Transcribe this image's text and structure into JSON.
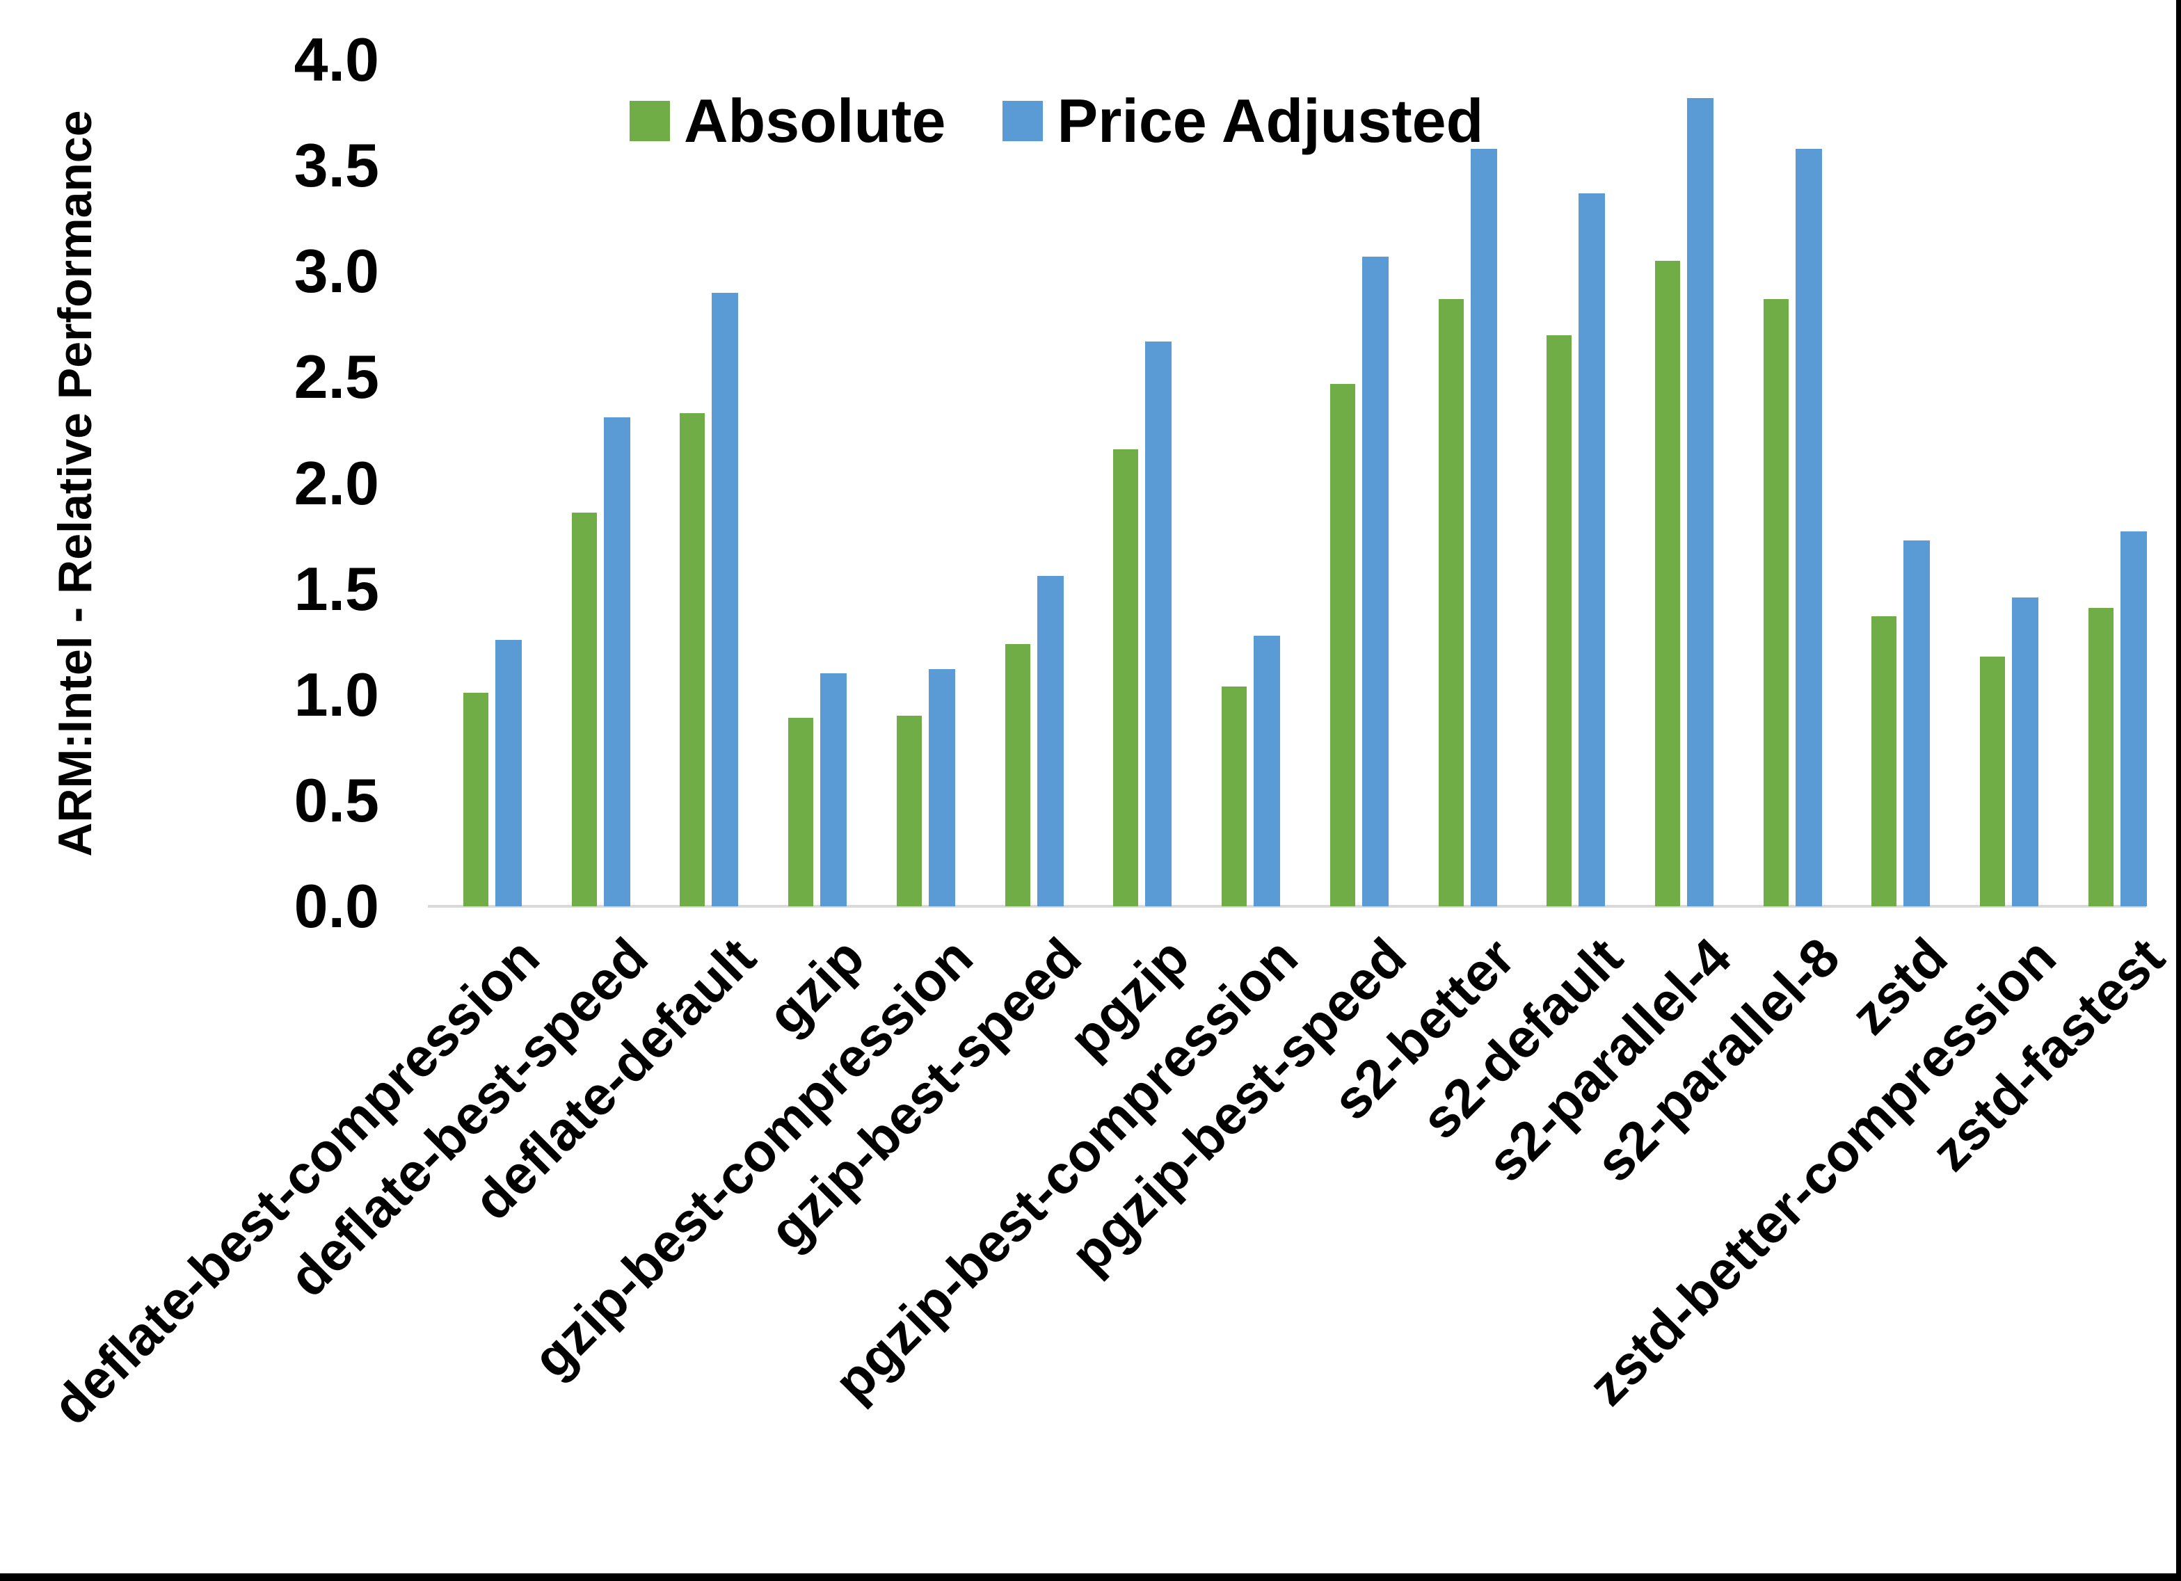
{
  "figure": {
    "y_axis_title": "ARM:Intel - Relative Performance",
    "background_color": "#ffffff",
    "axis_line_color": "#d9d9d9",
    "edge_line_color": "#000000"
  },
  "legend": {
    "items": [
      {
        "label": "Absolute",
        "color": "#70AD47"
      },
      {
        "label": "Price Adjusted",
        "color": "#5B9BD5"
      }
    ]
  },
  "chart_data": {
    "type": "bar",
    "title": "",
    "xlabel": "",
    "ylabel": "ARM:Intel - Relative Performance",
    "ylim": [
      0.0,
      4.0
    ],
    "y_tick_step": 0.5,
    "y_tick_labels": [
      "0.0",
      "0.5",
      "1.0",
      "1.5",
      "2.0",
      "2.5",
      "3.0",
      "3.5",
      "4.0"
    ],
    "grid": false,
    "legend_position": "top-center",
    "categories": [
      "deflate-best-compression",
      "deflate-best-speed",
      "deflate-default",
      "gzip",
      "gzip-best-compression",
      "gzip-best-speed",
      "pgzip",
      "pgzip-best-compression",
      "pgzip-best-speed",
      "s2-better",
      "s2-default",
      "s2-parallel-4",
      "s2-parallel-8",
      "zstd",
      "zstd-better-compression",
      "zstd-fastest"
    ],
    "series": [
      {
        "name": "Absolute",
        "color": "#70AD47",
        "values": [
          1.01,
          1.86,
          2.33,
          0.89,
          0.9,
          1.24,
          2.16,
          1.04,
          2.47,
          2.87,
          2.7,
          3.05,
          2.87,
          1.37,
          1.18,
          1.41
        ]
      },
      {
        "name": "Price Adjusted",
        "color": "#5B9BD5",
        "values": [
          1.26,
          2.31,
          2.9,
          1.1,
          1.12,
          1.56,
          2.67,
          1.28,
          3.07,
          3.58,
          3.37,
          3.82,
          3.58,
          1.73,
          1.46,
          1.77
        ]
      }
    ]
  }
}
